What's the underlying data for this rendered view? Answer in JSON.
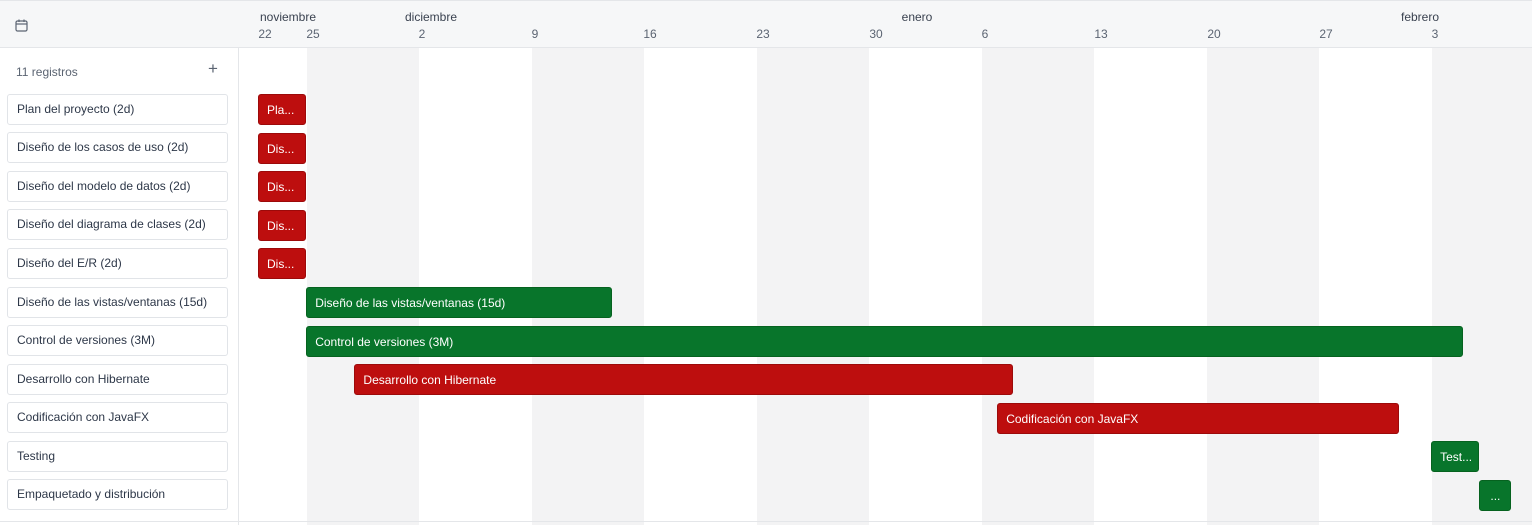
{
  "header": {
    "icon": "calendar-icon",
    "months": [
      {
        "label": "noviembre"
      },
      {
        "label": "diciembre"
      },
      {
        "label": "enero"
      },
      {
        "label": "febrero"
      }
    ],
    "days": [
      "22",
      "25",
      "2",
      "9",
      "16",
      "23",
      "30",
      "6",
      "13",
      "20",
      "27",
      "3"
    ]
  },
  "list": {
    "count_label": "11 registros",
    "add_label": "+",
    "rows": [
      " Plan del proyecto (2d)",
      "Diseño de los casos de uso (2d)",
      "Diseño del modelo de datos (2d)",
      "Diseño del diagrama de clases (2d)",
      "Diseño del E/R (2d)",
      "Diseño de las vistas/ventanas (15d)",
      "Control de versiones (3M)",
      "Desarrollo con Hibernate",
      "Codificación con JavaFX",
      "Testing",
      "Empaquetado y distribución"
    ]
  },
  "colors": {
    "red": "#bd0e0e",
    "green": "#08752b",
    "band": "#f3f3f4"
  },
  "tasks": [
    {
      "label": "Pla...",
      "color": "red",
      "start": "2023-11-22",
      "end": "2023-11-25"
    },
    {
      "label": "Dis...",
      "color": "red",
      "start": "2023-11-22",
      "end": "2023-11-25"
    },
    {
      "label": "Dis...",
      "color": "red",
      "start": "2023-11-22",
      "end": "2023-11-25"
    },
    {
      "label": "Dis...",
      "color": "red",
      "start": "2023-11-22",
      "end": "2023-11-25"
    },
    {
      "label": "Dis...",
      "color": "red",
      "start": "2023-11-22",
      "end": "2023-11-25"
    },
    {
      "label": "Diseño de las vistas/ventanas (15d)",
      "color": "green",
      "start": "2023-11-25",
      "end": "2023-12-14"
    },
    {
      "label": "Control de versiones (3M)",
      "color": "green",
      "start": "2023-11-25",
      "end": "2024-02-05"
    },
    {
      "label": "Desarrollo con Hibernate",
      "color": "red",
      "start": "2023-11-28",
      "end": "2024-01-08"
    },
    {
      "label": "Codificación con JavaFX",
      "color": "red",
      "start": "2024-01-07",
      "end": "2024-02-01"
    },
    {
      "label": "Test...",
      "color": "green",
      "start": "2024-02-03",
      "end": "2024-02-06"
    },
    {
      "label": "...",
      "color": "green",
      "start": "2024-02-06",
      "end": "2024-02-08"
    }
  ]
}
